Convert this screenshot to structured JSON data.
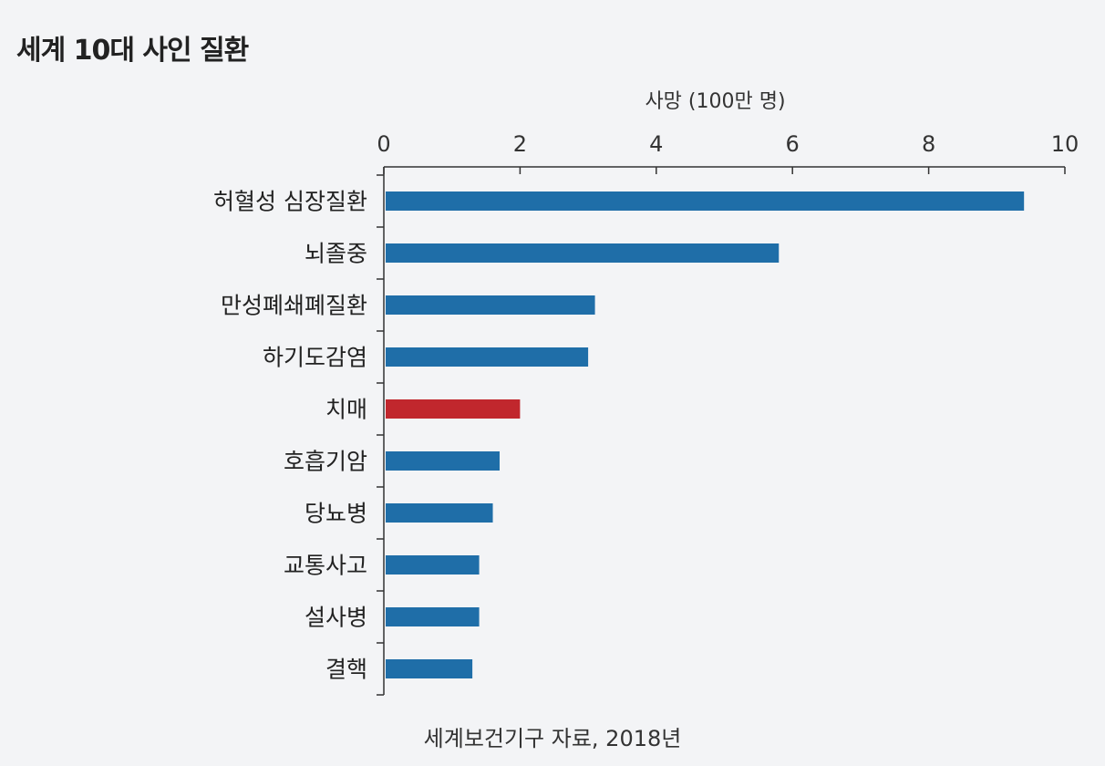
{
  "title": "세계 10대 사인 질환",
  "source": "세계보건기구 자료, 2018년",
  "chart_data": {
    "type": "bar",
    "orientation": "horizontal",
    "title": "세계 10대 사인 질환",
    "xlabel": "사망 (100만 명)",
    "xlim": [
      0,
      10
    ],
    "xticks": [
      0,
      2,
      4,
      6,
      8,
      10
    ],
    "categories": [
      "허혈성 심장질환",
      "뇌졸중",
      "만성폐쇄폐질환",
      "하기도감염",
      "치매",
      "호흡기암",
      "당뇨병",
      "교통사고",
      "설사병",
      "결핵"
    ],
    "values": [
      9.4,
      5.8,
      3.1,
      3.0,
      2.0,
      1.7,
      1.6,
      1.4,
      1.4,
      1.3
    ],
    "highlight": "치매",
    "colors": {
      "default": "#1f6ea8",
      "highlight": "#c1272d"
    },
    "grid": false
  }
}
